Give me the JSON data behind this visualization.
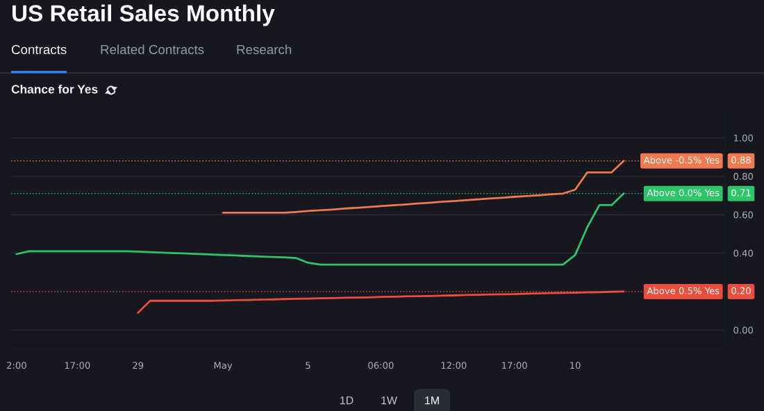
{
  "chart_data": {
    "type": "line",
    "title": "US Retail Sales Monthly",
    "subtitle": "Chance for Yes",
    "annotations": [
      "Contracts",
      "Related Contracts",
      "Research",
      "1D",
      "1W",
      "1M"
    ],
    "categories": [
      "2:00",
      null,
      null,
      null,
      null,
      "17:00",
      null,
      null,
      null,
      null,
      "29",
      null,
      null,
      null,
      null,
      null,
      null,
      "May",
      null,
      null,
      null,
      null,
      null,
      null,
      "5",
      null,
      null,
      null,
      null,
      null,
      "06:00",
      null,
      null,
      null,
      null,
      null,
      "12:00",
      null,
      null,
      null,
      null,
      "17:00",
      null,
      null,
      null,
      null,
      "10",
      null,
      null,
      null,
      null
    ],
    "series": [
      {
        "name": "Above -0.5% Yes",
        "color": "#f0794f",
        "values": [
          null,
          null,
          null,
          null,
          null,
          null,
          null,
          null,
          null,
          null,
          null,
          null,
          null,
          null,
          null,
          null,
          null,
          0.61,
          0.61,
          0.61,
          0.61,
          0.61,
          0.61,
          0.614,
          0.619,
          0.623,
          0.627,
          0.632,
          0.636,
          0.64,
          0.645,
          0.649,
          0.653,
          0.658,
          0.662,
          0.667,
          0.671,
          0.675,
          0.68,
          0.684,
          0.688,
          0.693,
          0.697,
          0.701,
          0.706,
          0.71,
          0.73,
          0.82,
          0.82,
          0.82,
          0.88
        ]
      },
      {
        "name": "Above 0.0% Yes",
        "color": "#2ec56a",
        "values": [
          0.395,
          0.41,
          0.41,
          0.41,
          0.41,
          0.41,
          0.41,
          0.41,
          0.41,
          0.41,
          0.408,
          0.405,
          0.403,
          0.4,
          0.398,
          0.395,
          0.393,
          0.39,
          0.388,
          0.385,
          0.383,
          0.38,
          0.378,
          0.375,
          0.35,
          0.34,
          0.34,
          0.34,
          0.34,
          0.34,
          0.34,
          0.34,
          0.34,
          0.34,
          0.34,
          0.34,
          0.34,
          0.34,
          0.34,
          0.34,
          0.34,
          0.34,
          0.34,
          0.34,
          0.34,
          0.34,
          0.39,
          0.535,
          0.65,
          0.65,
          0.71
        ]
      },
      {
        "name": "Above 0.5% Yes",
        "color": "#ea4d3d",
        "values": [
          null,
          null,
          null,
          null,
          null,
          null,
          null,
          null,
          null,
          null,
          0.09,
          0.152,
          0.152,
          0.152,
          0.152,
          0.152,
          0.152,
          0.153,
          0.155,
          0.156,
          0.158,
          0.159,
          0.161,
          0.162,
          0.163,
          0.165,
          0.166,
          0.168,
          0.169,
          0.17,
          0.172,
          0.173,
          0.175,
          0.176,
          0.177,
          0.179,
          0.18,
          0.182,
          0.183,
          0.185,
          0.186,
          0.187,
          0.189,
          0.19,
          0.192,
          0.193,
          0.194,
          0.196,
          0.197,
          0.199,
          0.2
        ]
      }
    ],
    "ref_lines": [
      {
        "axis": "y",
        "value": 0.88,
        "label": "0.88",
        "color": "#f0794f",
        "line_style": "dotted"
      },
      {
        "axis": "y",
        "value": 0.71,
        "label": "0.71",
        "color": "#2ec56a",
        "line_style": "dotted"
      },
      {
        "axis": "y",
        "value": 0.2,
        "label": "0.20",
        "color": "#ea4d3d",
        "line_style": "dotted"
      }
    ],
    "ylim": [
      -0.1,
      1.15
    ],
    "yticks": [
      {
        "value": 0,
        "label": "0.00"
      },
      {
        "value": 0.4,
        "label": "0.40"
      },
      {
        "value": 0.6,
        "label": "0.60"
      },
      {
        "value": 0.8,
        "label": "0.80"
      },
      {
        "value": 1,
        "label": "1.00"
      }
    ],
    "grid": "y",
    "legend": "right"
  }
}
